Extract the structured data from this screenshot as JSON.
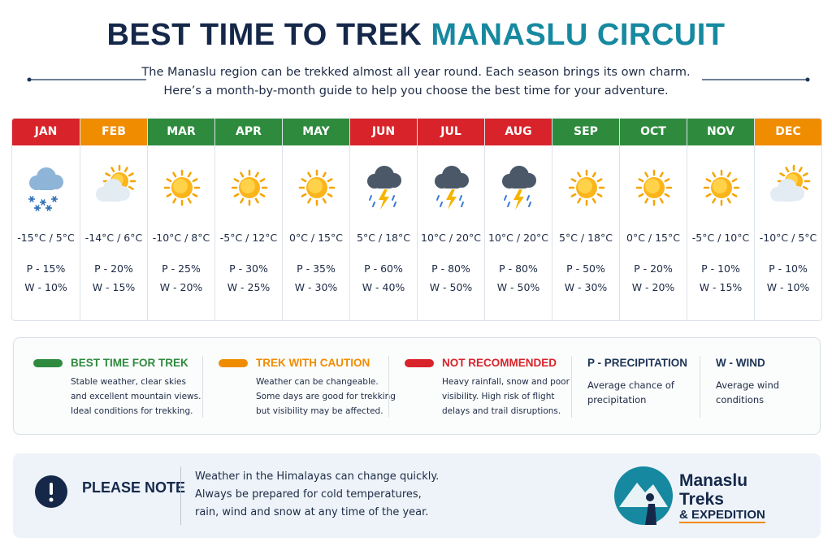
{
  "header": {
    "title_dark": "BEST TIME TO TREK",
    "title_accent": "MANASLU CIRCUIT",
    "intro": [
      "The Manaslu region can be trekked almost all year round. Each season brings its own charm.",
      "Here’s a month-by-month guide to help you choose the best time for your adventure."
    ]
  },
  "months": [
    {
      "name": "JAN",
      "color": "#d8232a",
      "temp": "-15°C / 5°C",
      "precip": "P - 15%",
      "wind": "W - 10%"
    },
    {
      "name": "FEB",
      "color": "#f08c00",
      "temp": "-14°C / 6°C",
      "precip": "P - 20%",
      "wind": "W - 15%"
    },
    {
      "name": "MAR",
      "color": "#2e8b3e",
      "temp": "-10°C / 8°C",
      "precip": "P - 25%",
      "wind": "W - 20%"
    },
    {
      "name": "APR",
      "color": "#2e8b3e",
      "temp": "-5°C / 12°C",
      "precip": "P - 30%",
      "wind": "W - 25%"
    },
    {
      "name": "MAY",
      "color": "#2e8b3e",
      "temp": "0°C / 15°C",
      "precip": "P - 35%",
      "wind": "W - 30%"
    },
    {
      "name": "JUN",
      "color": "#d8232a",
      "temp": "5°C / 18°C",
      "precip": "P - 60%",
      "wind": "W - 40%"
    },
    {
      "name": "JUL",
      "color": "#d8232a",
      "temp": "10°C / 20°C",
      "precip": "P - 80%",
      "wind": "W - 50%"
    },
    {
      "name": "AUG",
      "color": "#d8232a",
      "temp": "10°C / 20°C",
      "precip": "P - 80%",
      "wind": "W - 50%"
    },
    {
      "name": "SEP",
      "color": "#2e8b3e",
      "temp": "5°C / 18°C",
      "precip": "P - 50%",
      "wind": "W - 30%"
    },
    {
      "name": "OCT",
      "color": "#2e8b3e",
      "temp": "0°C / 15°C",
      "precip": "P - 20%",
      "wind": "W - 20%"
    },
    {
      "name": "NOV",
      "color": "#2e8b3e",
      "temp": "-5°C / 10°C",
      "precip": "P - 10%",
      "wind": "W - 15%"
    },
    {
      "name": "DEC",
      "color": "#f08c00",
      "temp": "-10°C / 5°C",
      "precip": "P - 10%",
      "wind": "W - 10%"
    }
  ],
  "legend": [
    {
      "title": "BEST TIME FOR TREK",
      "color": "#2e8b3e",
      "lines": [
        "Stable weather, clear skies",
        "and excellent mountain views.",
        "Ideal conditions for trekking."
      ]
    },
    {
      "title": "TREK WITH CAUTION",
      "color": "#f08c00",
      "lines": [
        "Weather can be changeable.",
        "Some days are good for trekking",
        "but visibility may be affected."
      ]
    },
    {
      "title": "NOT RECOMMENDED",
      "color": "#d8232a",
      "lines": [
        "Heavy rainfall, snow and poor",
        "visibility. High risk of flight",
        "delays and trail disruptions."
      ]
    },
    {
      "title": "P - PRECIPITATION",
      "color": "#1d3557",
      "lines": [
        "Average chance of",
        "precipitation"
      ]
    },
    {
      "title": "W - WIND",
      "color": "#1d3557",
      "lines": [
        "Average wind",
        "conditions"
      ]
    }
  ],
  "note": {
    "title": "PLEASE NOTE",
    "lines": [
      "Weather in the Himalayas can change quickly.",
      "Always be prepared for cold temperatures,",
      "rain, wind and snow at any time of the year."
    ]
  },
  "logo": {
    "line1": "Manaslu",
    "line2": "Treks",
    "line3": "& EXPEDITION"
  }
}
